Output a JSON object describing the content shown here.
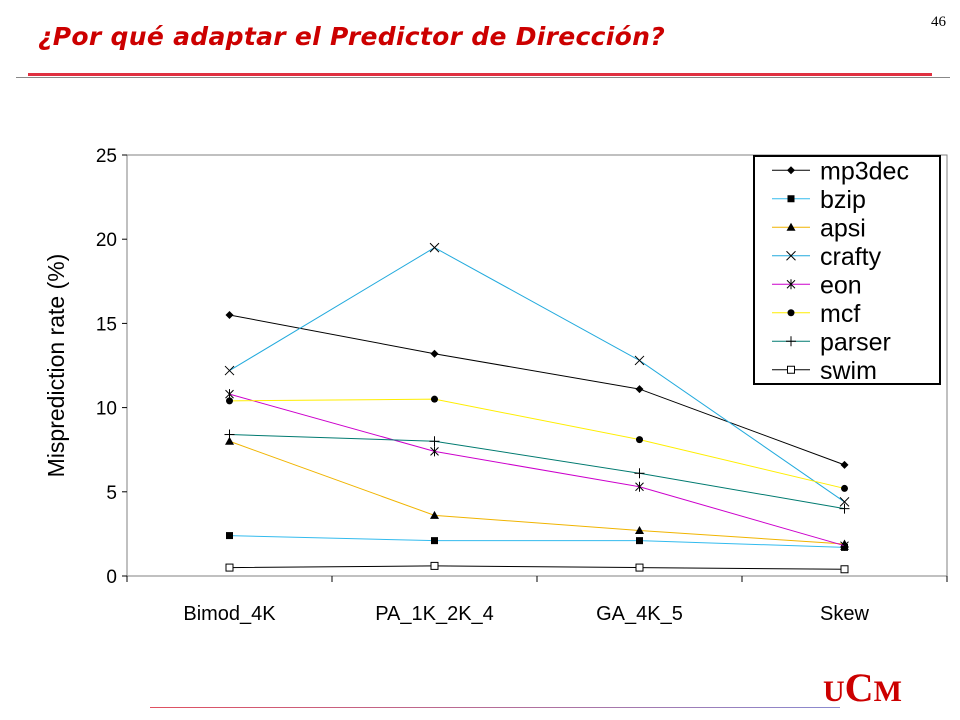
{
  "page_number": "46",
  "title": "¿Por qué adaptar el Predictor de Dirección?",
  "logo": {
    "u": "U",
    "c": "C",
    "m": "M"
  },
  "chart_data": {
    "type": "line",
    "categories": [
      "Bimod_4K",
      "PA_1K_2K_4",
      "GA_4K_5",
      "Skew"
    ],
    "ylabel": "Misprediction rate (%)",
    "xlabel": "",
    "ylim": [
      0,
      25
    ],
    "yticks": [
      0,
      5,
      10,
      15,
      20,
      25
    ],
    "grid": false,
    "legend_position": "top-right",
    "series": [
      {
        "name": "mp3dec",
        "values": [
          15.5,
          13.2,
          11.1,
          6.6
        ],
        "color": "#000000",
        "marker": "diamond"
      },
      {
        "name": "bzip",
        "values": [
          2.4,
          2.1,
          2.1,
          1.7
        ],
        "color": "#33bbee",
        "marker": "square"
      },
      {
        "name": "apsi",
        "values": [
          8.0,
          3.6,
          2.7,
          1.9
        ],
        "color": "#f0b400",
        "marker": "triangle"
      },
      {
        "name": "crafty",
        "values": [
          12.2,
          19.5,
          12.8,
          4.4
        ],
        "color": "#22aadd",
        "marker": "x"
      },
      {
        "name": "eon",
        "values": [
          10.8,
          7.4,
          5.3,
          1.8
        ],
        "color": "#cc00cc",
        "marker": "star"
      },
      {
        "name": "mcf",
        "values": [
          10.4,
          10.5,
          8.1,
          5.2
        ],
        "color": "#ffee00",
        "marker": "circle"
      },
      {
        "name": "parser",
        "values": [
          8.4,
          8.0,
          6.1,
          4.0
        ],
        "color": "#007a70",
        "marker": "plus"
      },
      {
        "name": "swim",
        "values": [
          0.5,
          0.6,
          0.5,
          0.4
        ],
        "color": "#000000",
        "marker": "open-square"
      }
    ]
  }
}
